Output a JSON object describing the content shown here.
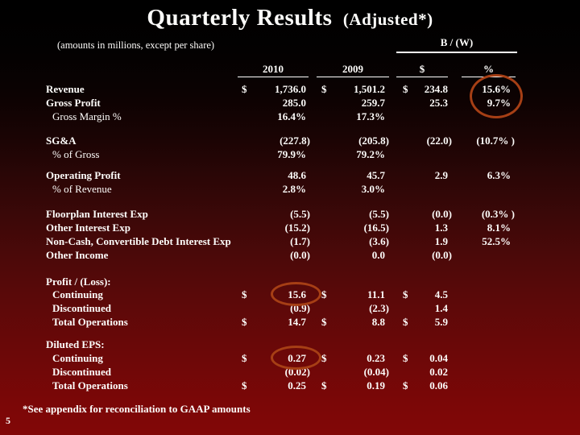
{
  "slide": {
    "title": "Quarterly Results",
    "title_suffix": "(Adjusted*)",
    "subtitle": "(amounts in millions, except per share)",
    "footnote": "*See appendix for reconciliation to GAAP amounts",
    "page_number": "5"
  },
  "colors": {
    "text": "#ffffff",
    "background_top": "#000000",
    "background_bottom": "#820707",
    "annotation_circle": "#a63f15"
  },
  "table": {
    "group_header": "B / (W)",
    "columns": [
      "2010",
      "2009",
      "$",
      "%"
    ],
    "rows": [
      {
        "label": "Revenue",
        "d1": "$",
        "v1": "1,736.0",
        "d2": "$",
        "v2": "1,501.2",
        "d3": "$",
        "v3": "234.8",
        "v4": "15.6%"
      },
      {
        "label": "Gross Profit",
        "v1": "285.0",
        "v2": "259.7",
        "v3": "25.3",
        "v4": "9.7%"
      },
      {
        "label": "Gross Margin %",
        "indent": true,
        "bold": false,
        "v1": "16.4%",
        "v2": "17.3%"
      },
      {
        "label": "SG&A",
        "v1": "(227.8)",
        "v2": "(205.8)",
        "v3": "(22.0)",
        "v4": "(10.7% )"
      },
      {
        "label": "% of Gross",
        "indent": true,
        "bold": false,
        "v1": "79.9%",
        "v2": "79.2%"
      },
      {
        "label": "Operating Profit",
        "v1": "48.6",
        "v2": "45.7",
        "v3": "2.9",
        "v4": "6.3%"
      },
      {
        "label": "% of Revenue",
        "indent": true,
        "bold": false,
        "v1": "2.8%",
        "v2": "3.0%"
      },
      {
        "label": "Floorplan Interest Exp",
        "v1": "(5.5)",
        "v2": "(5.5)",
        "v3": "(0.0)",
        "v4": "(0.3% )"
      },
      {
        "label": "Other Interest Exp",
        "v1": "(15.2)",
        "v2": "(16.5)",
        "v3": "1.3",
        "v4": "8.1%"
      },
      {
        "label": "Non-Cash, Convertible Debt Interest Exp",
        "v1": "(1.7)",
        "v2": "(3.6)",
        "v3": "1.9",
        "v4": "52.5%"
      },
      {
        "label": "Other Income",
        "v1": "(0.0)",
        "v2": "0.0",
        "v3": "(0.0)"
      },
      {
        "label": "Profit / (Loss):"
      },
      {
        "label": "Continuing",
        "indent": true,
        "d1": "$",
        "v1": "15.6",
        "d2": "$",
        "v2": "11.1",
        "d3": "$",
        "v3": "4.5"
      },
      {
        "label": "Discontinued",
        "indent": true,
        "v1": "(0.9)",
        "v2": "(2.3)",
        "v3": "1.4"
      },
      {
        "label": "Total Operations",
        "indent": true,
        "d1": "$",
        "v1": "14.7",
        "d2": "$",
        "v2": "8.8",
        "d3": "$",
        "v3": "5.9"
      },
      {
        "label": "Diluted EPS:"
      },
      {
        "label": "Continuing",
        "indent": true,
        "d1": "$",
        "v1": "0.27",
        "d2": "$",
        "v2": "0.23",
        "d3": "$",
        "v3": "0.04"
      },
      {
        "label": "Discontinued",
        "indent": true,
        "v1": "(0.02)",
        "v2": "(0.04)",
        "v3": "0.02"
      },
      {
        "label": "Total Operations",
        "indent": true,
        "d1": "$",
        "v1": "0.25",
        "d2": "$",
        "v2": "0.19",
        "d3": "$",
        "v3": "0.06"
      }
    ]
  },
  "annotations": {
    "circles": [
      {
        "marks": "B/(W) % for Revenue and Gross Profit: 15.6% / 9.7%"
      },
      {
        "marks": "Continuing profit 2010: 15.6"
      },
      {
        "marks": "Diluted EPS continuing 2010: 0.27"
      }
    ]
  }
}
